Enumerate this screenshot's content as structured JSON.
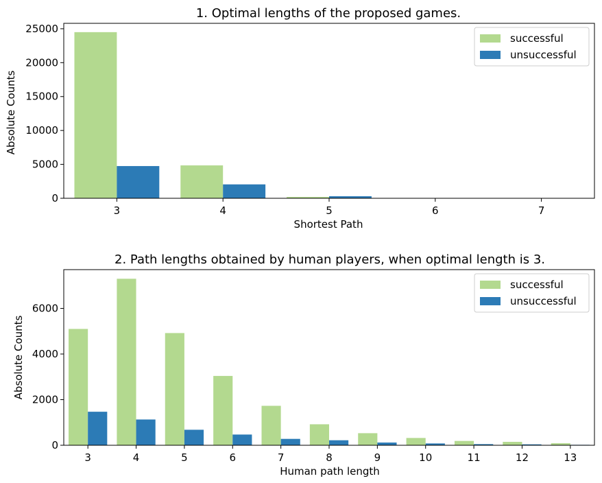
{
  "colors": {
    "successful": "#b3d98f",
    "unsuccessful": "#2c7bb6",
    "axis": "#000000",
    "legend_border": "#cccccc"
  },
  "chart_data": [
    {
      "type": "bar",
      "title": "1. Optimal lengths of the proposed games.",
      "xlabel": "Shortest Path",
      "ylabel": "Absolute Counts",
      "categories": [
        "3",
        "4",
        "5",
        "6",
        "7"
      ],
      "series": [
        {
          "name": "successful",
          "values": [
            24500,
            4850,
            200,
            0,
            0
          ]
        },
        {
          "name": "unsuccessful",
          "values": [
            4750,
            2050,
            300,
            0,
            0
          ]
        }
      ],
      "ylim": [
        0,
        25800
      ],
      "yticks": [
        0,
        5000,
        10000,
        15000,
        20000,
        25000
      ],
      "legend": "top-right",
      "grid": false
    },
    {
      "type": "bar",
      "title": "2. Path lengths obtained by human players, when optimal length is 3.",
      "xlabel": "Human path length",
      "ylabel": "Absolute Counts",
      "categories": [
        "3",
        "4",
        "5",
        "6",
        "7",
        "8",
        "9",
        "10",
        "11",
        "12",
        "13"
      ],
      "series": [
        {
          "name": "successful",
          "values": [
            5100,
            7300,
            4920,
            3040,
            1730,
            920,
            530,
            320,
            190,
            150,
            90
          ]
        },
        {
          "name": "unsuccessful",
          "values": [
            1470,
            1130,
            680,
            470,
            280,
            220,
            120,
            80,
            50,
            40,
            20
          ]
        }
      ],
      "ylim": [
        0,
        7700
      ],
      "yticks": [
        0,
        2000,
        4000,
        6000
      ],
      "legend": "top-right",
      "grid": false
    }
  ]
}
